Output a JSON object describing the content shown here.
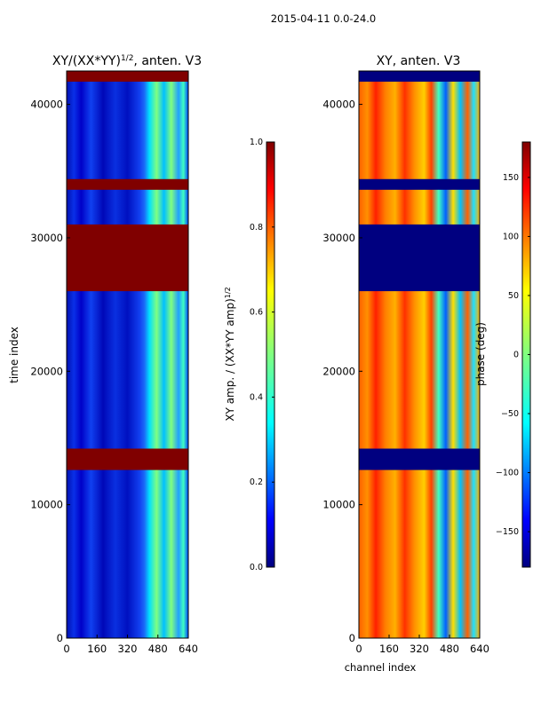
{
  "suptitle": "2015-04-11 0.0-24.0",
  "colors": {
    "jet": [
      "#000080",
      "#0000ff",
      "#0080ff",
      "#00ffff",
      "#80ff80",
      "#ffff00",
      "#ff8000",
      "#ff0000",
      "#800000"
    ]
  },
  "chart_data": [
    {
      "type": "heatmap",
      "title": "XY/(XX*YY)",
      "title_sup": "1/2",
      "title_suffix": ", anten. V3",
      "xlabel": "",
      "ylabel": "time index",
      "xlim": [
        0,
        640
      ],
      "ylim": [
        0,
        42500
      ],
      "xticks": [
        0,
        160,
        320,
        480,
        640
      ],
      "yticks": [
        0,
        10000,
        20000,
        30000,
        40000
      ],
      "colorbar": {
        "label": "XY amp. / (XX*YY amp)",
        "label_sup": "1/2",
        "range": [
          0.0,
          1.0
        ],
        "ticks": [
          "0.0",
          "0.2",
          "0.4",
          "0.6",
          "0.8",
          "1.0"
        ]
      },
      "bands": [
        {
          "from": 41700,
          "to": 42500,
          "value": 1.0
        },
        {
          "from": 33600,
          "to": 34400,
          "value": 1.0
        },
        {
          "from": 26000,
          "to": 31000,
          "value": 1.0
        },
        {
          "from": 12600,
          "to": 14200,
          "value": 1.0
        }
      ]
    },
    {
      "type": "heatmap",
      "title": "XY, anten. V3",
      "xlabel": "channel index",
      "ylabel": "",
      "xlim": [
        0,
        640
      ],
      "ylim": [
        0,
        42500
      ],
      "xticks": [
        0,
        160,
        320,
        480,
        640
      ],
      "yticks": [
        0,
        10000,
        20000,
        30000,
        40000
      ],
      "colorbar": {
        "label": "phase (deg)",
        "range": [
          -180,
          180
        ],
        "ticks": [
          "−150",
          "−100",
          "−50",
          "0",
          "50",
          "100",
          "150"
        ]
      },
      "bands": [
        {
          "from": 41700,
          "to": 42500,
          "value": -180
        },
        {
          "from": 33600,
          "to": 34400,
          "value": -180
        },
        {
          "from": 26000,
          "to": 31000,
          "value": -180
        },
        {
          "from": 12600,
          "to": 14200,
          "value": -180
        }
      ]
    }
  ]
}
